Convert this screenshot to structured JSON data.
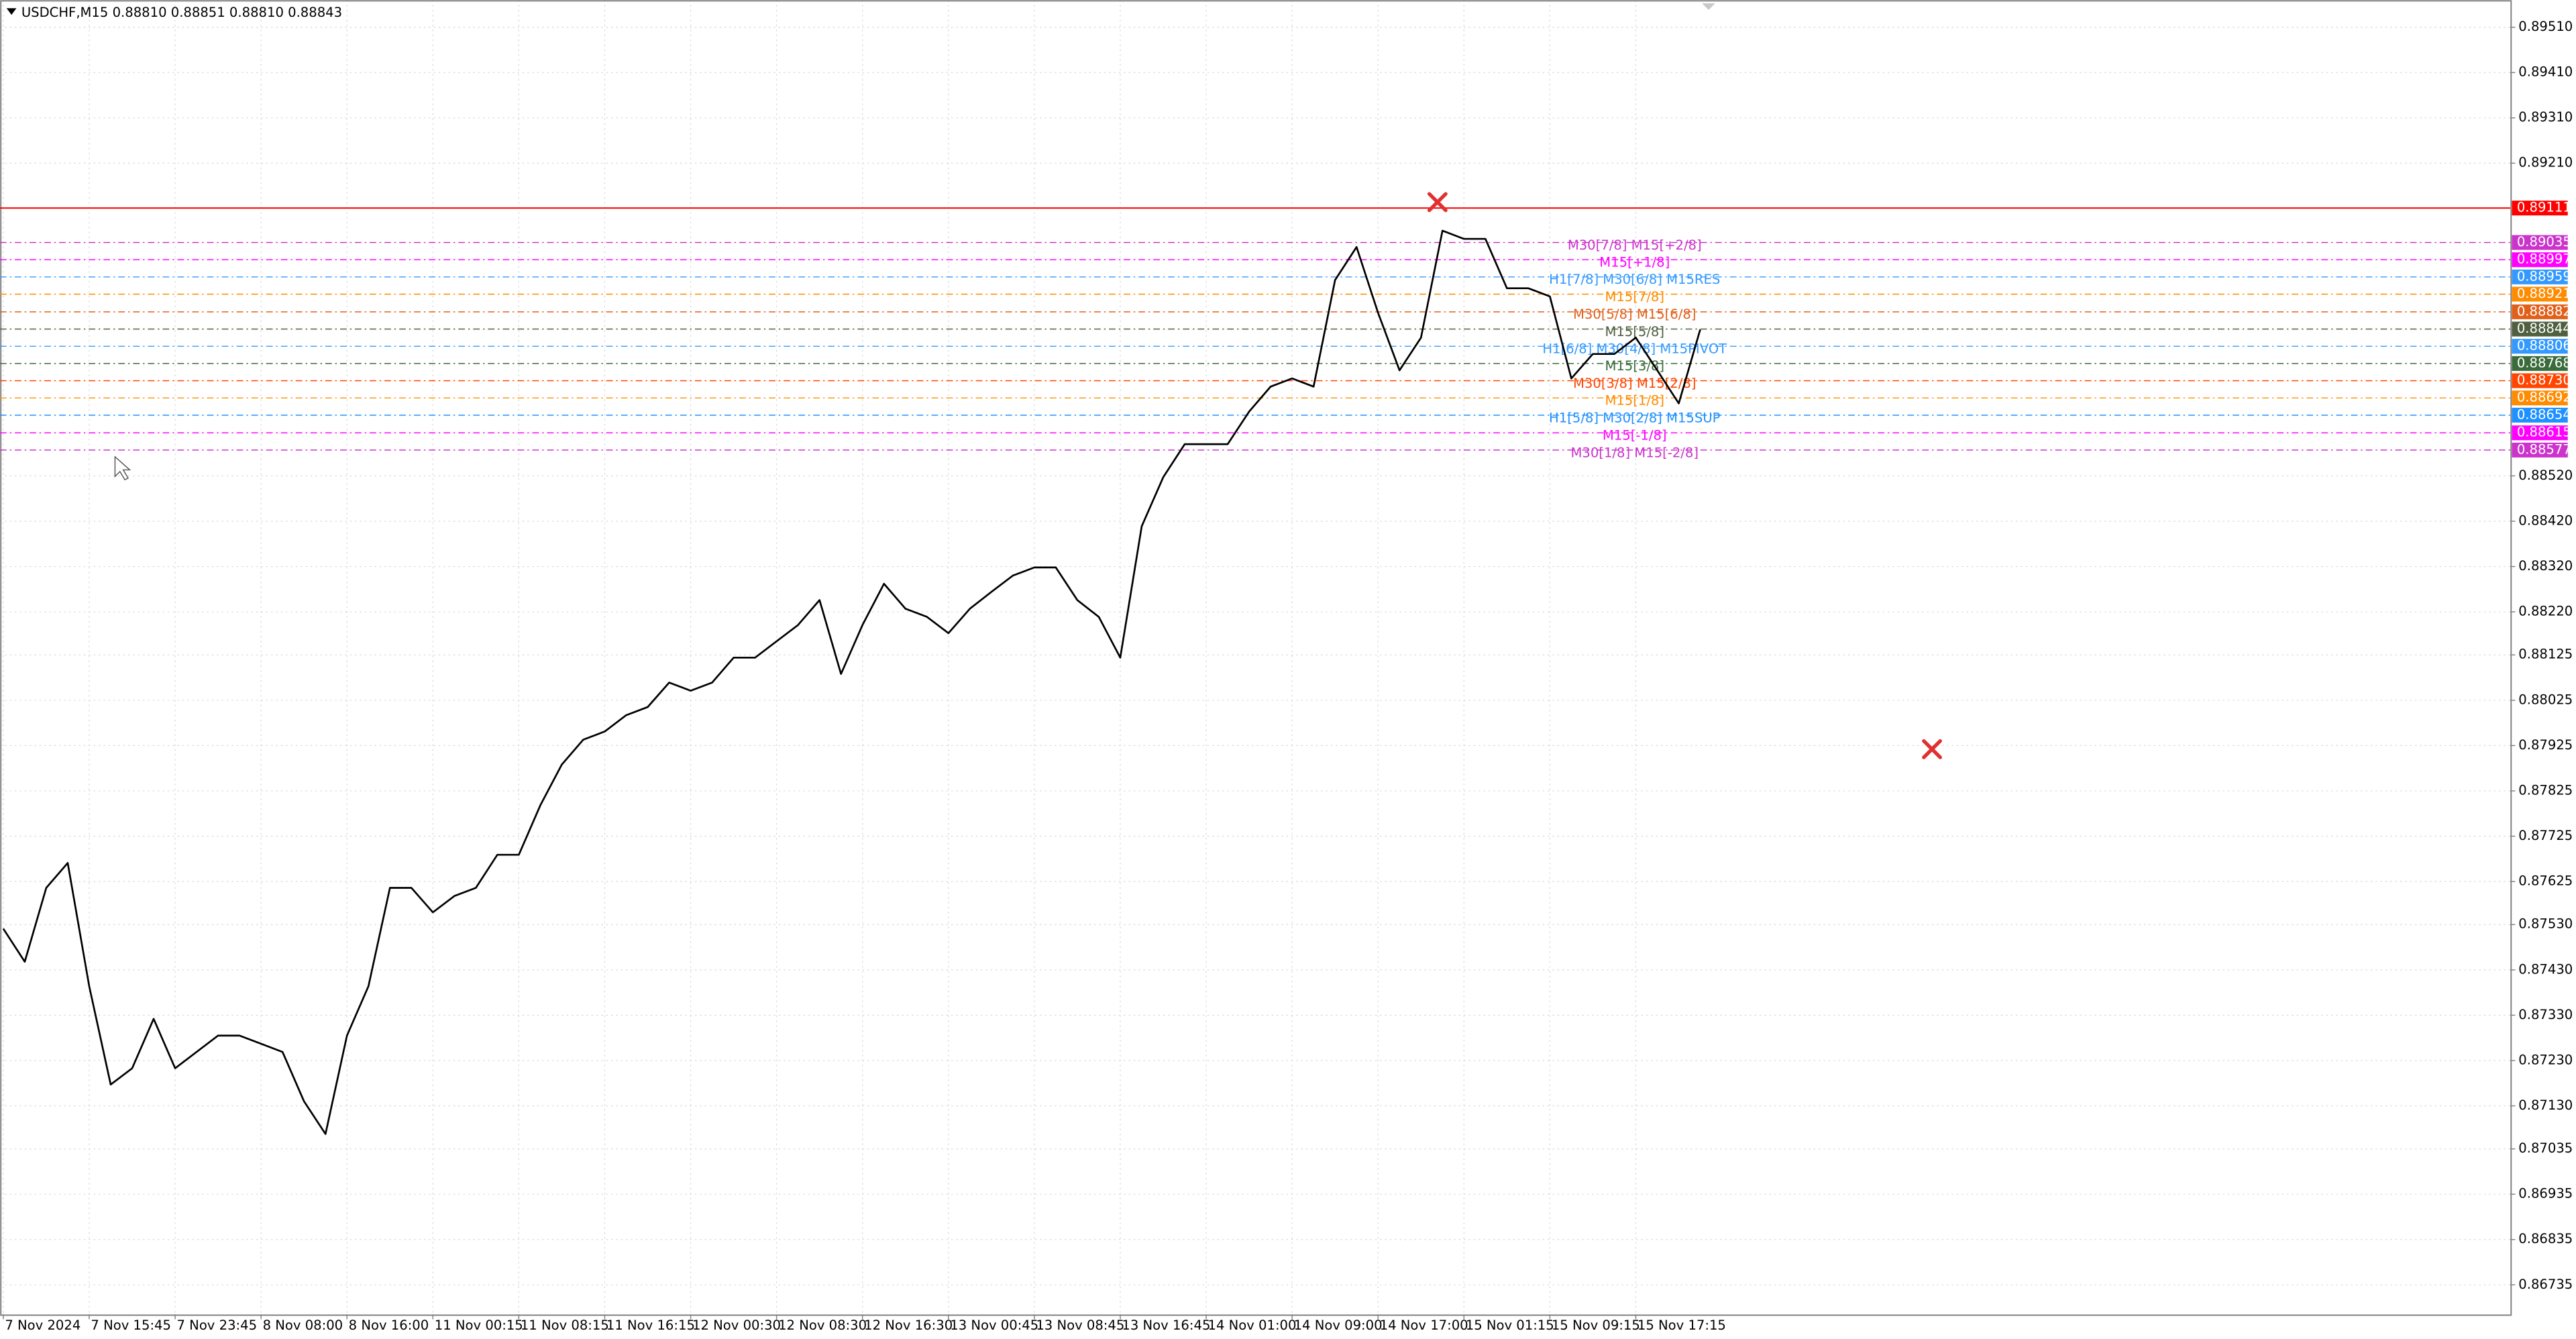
{
  "chart_data": {
    "type": "line",
    "title": "USDCHF,M15  0.88810 0.88851 0.88810 0.88843",
    "color": "#000000",
    "grid": true,
    "ylim": [
      0.8667,
      0.8957
    ],
    "yticks": [
      {
        "value": 0.8951,
        "label": "0.89510"
      },
      {
        "value": 0.8941,
        "label": "0.89410"
      },
      {
        "value": 0.8931,
        "label": "0.89310"
      },
      {
        "value": 0.8921,
        "label": "0.89210"
      },
      {
        "value": 0.8852,
        "label": "0.88520"
      },
      {
        "value": 0.8842,
        "label": "0.88420"
      },
      {
        "value": 0.8832,
        "label": "0.88320"
      },
      {
        "value": 0.8822,
        "label": "0.88220"
      },
      0.88125,
      0.88025,
      0.87925,
      0.87825,
      0.87725,
      0.87625,
      {
        "value": 0.8753,
        "label": "0.87530"
      },
      {
        "value": 0.8743,
        "label": "0.87430"
      },
      {
        "value": 0.8733,
        "label": "0.87330"
      },
      {
        "value": 0.8723,
        "label": "0.87230"
      },
      {
        "value": 0.8713,
        "label": "0.87130"
      },
      0.87035,
      0.86935,
      0.86835,
      0.86735
    ],
    "categories": [
      "7 Nov 2024",
      null,
      null,
      null,
      "7 Nov 15:45",
      null,
      null,
      null,
      "7 Nov 23:45",
      null,
      null,
      null,
      "8 Nov 08:00",
      null,
      null,
      null,
      "8 Nov 16:00",
      null,
      null,
      null,
      "11 Nov 00:15",
      null,
      null,
      null,
      "11 Nov 08:15",
      null,
      null,
      null,
      "11 Nov 16:15",
      null,
      null,
      null,
      "12 Nov 00:30",
      null,
      null,
      null,
      "12 Nov 08:30",
      null,
      null,
      null,
      "12 Nov 16:30",
      null,
      null,
      null,
      "13 Nov 00:45",
      null,
      null,
      null,
      "13 Nov 08:45",
      null,
      null,
      null,
      "13 Nov 16:45",
      null,
      null,
      null,
      "14 Nov 01:00",
      null,
      null,
      null,
      "14 Nov 09:00",
      null,
      null,
      null,
      "14 Nov 17:00",
      null,
      null,
      null,
      "15 Nov 01:15",
      null,
      null,
      null,
      "15 Nov 09:15",
      null,
      null,
      null,
      "15 Nov 17:15",
      null,
      null,
      null,
      null,
      null,
      null,
      null,
      null,
      null,
      null,
      null,
      null,
      null,
      null,
      null,
      null,
      null,
      null,
      null,
      null,
      null,
      null,
      null,
      null,
      null,
      null,
      null,
      null,
      null,
      null,
      null,
      null,
      null,
      null,
      null,
      null,
      null,
      null,
      null,
      null
    ],
    "values": [
      0.87521,
      0.87448,
      0.87611,
      0.87666,
      0.87394,
      0.87177,
      0.87213,
      0.87322,
      0.87213,
      0.87249,
      0.87285,
      0.87285,
      0.87267,
      0.87249,
      0.8714,
      0.87068,
      0.87285,
      0.87394,
      0.87611,
      0.87611,
      0.87557,
      0.87593,
      0.87611,
      0.87684,
      0.87684,
      0.87793,
      0.87883,
      0.87938,
      0.87956,
      0.87992,
      0.8801,
      0.88064,
      0.88046,
      0.88064,
      0.88119,
      0.88119,
      0.88155,
      0.88191,
      0.88246,
      0.88083,
      0.88191,
      0.88282,
      0.88227,
      0.88209,
      0.88173,
      0.88227,
      0.88264,
      0.883,
      0.88318,
      0.88318,
      0.88246,
      0.88209,
      0.88119,
      0.88409,
      0.88517,
      0.8859,
      0.8859,
      0.8859,
      0.88662,
      0.88717,
      0.88735,
      0.88717,
      0.88952,
      0.89025,
      0.8888,
      0.88753,
      0.88825,
      0.89061,
      0.89043,
      0.89043,
      0.88934,
      0.88934,
      0.88916,
      0.88735,
      0.88789,
      0.88789,
      0.88825,
      0.88753,
      0.8868,
      0.88843,
      null,
      null,
      null,
      null,
      null,
      null,
      null,
      null,
      null,
      null,
      null,
      null,
      null,
      null,
      null,
      null,
      null,
      null,
      null,
      null,
      null,
      null,
      null,
      null,
      null,
      null,
      null,
      null,
      null,
      null,
      null,
      null,
      null,
      null,
      null,
      null,
      null
    ],
    "alert_line": {
      "value": 0.89111,
      "color": "#ff0000"
    },
    "levels": [
      {
        "name": "M30[7/8] M15[+2/8]",
        "value": 0.89035,
        "color": "#cc33cc"
      },
      {
        "name": "M15[+1/8]",
        "value": 0.88997,
        "color": "#ff00ff"
      },
      {
        "name": "H1[7/8] M30[6/8] M15RES",
        "value": 0.88959,
        "color": "#3399ff"
      },
      {
        "name": "M15[7/8]",
        "value": 0.88921,
        "color": "#ff8c00"
      },
      {
        "name": "M30[5/8] M15[6/8]",
        "value": 0.88882,
        "color": "#e0601a"
      },
      {
        "name": "M15[5/8]",
        "value": 0.88844,
        "color": "#4f5f3f"
      },
      {
        "name": "H1[6/8] M30[4/8] M15PIVOT",
        "value": 0.88806,
        "color": "#3399ff"
      },
      {
        "name": "M15[3/8]",
        "value": 0.88768,
        "color": "#3a6b3a"
      },
      {
        "name": "M30[3/8] M15[2/8]",
        "value": 0.8873,
        "value_label": "0.88730",
        "color": "#ff4500"
      },
      {
        "name": "M15[1/8]",
        "value": 0.88692,
        "color": "#ff8c00"
      },
      {
        "name": "H1[5/8] M30[2/8] M15SUP",
        "value": 0.88654,
        "color": "#1e90ff"
      },
      {
        "name": "M15[-1/8]",
        "value": 0.88615,
        "color": "#ff00ff"
      },
      {
        "name": "M30[1/8] M15[-2/8]",
        "value": 0.88577,
        "color": "#cc33cc"
      }
    ]
  }
}
